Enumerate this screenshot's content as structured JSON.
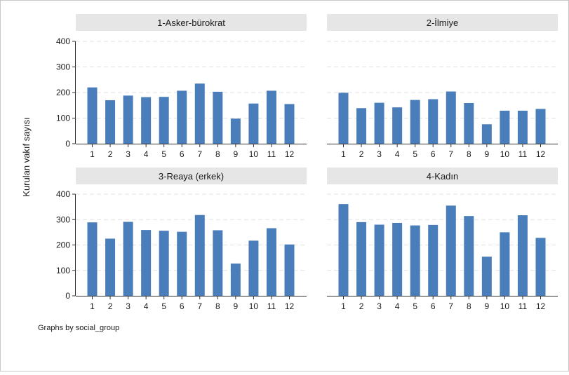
{
  "footer_note": "Graphs by social_group",
  "chart_data": {
    "type": "bar",
    "ylabel": "Kurulan vakıf sayısı",
    "categories": [
      "1",
      "2",
      "3",
      "4",
      "5",
      "6",
      "7",
      "8",
      "9",
      "10",
      "11",
      "12"
    ],
    "ylim": [
      0,
      400
    ],
    "yticks": [
      0,
      100,
      200,
      300,
      400
    ],
    "grid": true,
    "bar_color": "#4a7ebb",
    "panel_header_color": "#e6e6e6",
    "panels": [
      {
        "title": "1-Asker-bürokrat",
        "values": [
          220,
          170,
          188,
          182,
          183,
          207,
          235,
          203,
          98,
          157,
          207,
          155
        ]
      },
      {
        "title": "2-İlmiye",
        "values": [
          199,
          139,
          160,
          142,
          171,
          174,
          204,
          159,
          76,
          129,
          129,
          136
        ]
      },
      {
        "title": "3-Reaya (erkek)",
        "values": [
          289,
          225,
          291,
          259,
          256,
          252,
          318,
          258,
          127,
          217,
          266,
          202
        ]
      },
      {
        "title": "4-Kadın",
        "values": [
          361,
          290,
          280,
          287,
          277,
          279,
          355,
          314,
          154,
          250,
          317,
          228
        ]
      }
    ]
  }
}
